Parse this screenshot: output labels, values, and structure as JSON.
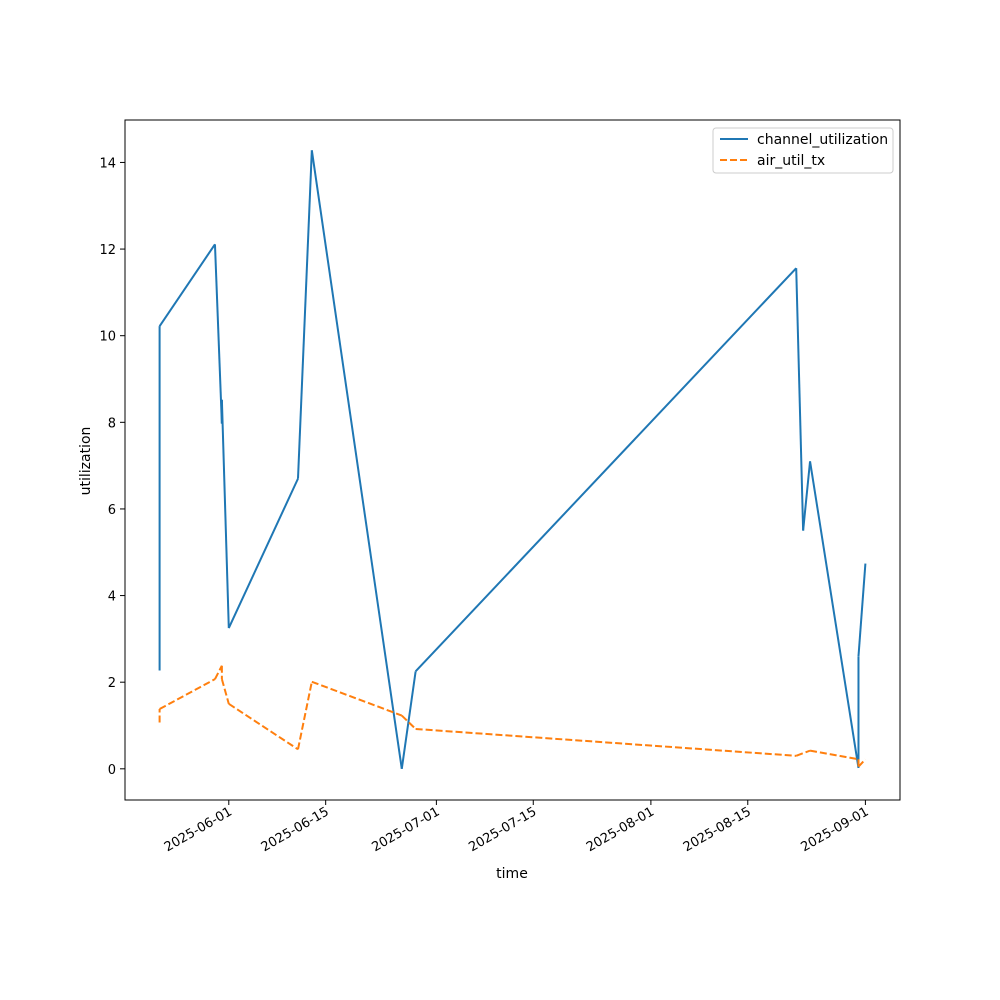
{
  "chart_data": {
    "type": "line",
    "xlabel": "time",
    "ylabel": "utilization",
    "x_ticks": [
      "2025-06-01",
      "2025-06-15",
      "2025-07-01",
      "2025-07-15",
      "2025-08-01",
      "2025-08-15",
      "2025-09-01"
    ],
    "y_ticks": [
      0,
      2,
      4,
      6,
      8,
      10,
      12,
      14
    ],
    "xlim": [
      "2025-05-17",
      "2025-09-06"
    ],
    "ylim": [
      -0.72,
      14.98
    ],
    "legend_position": "top-right",
    "grid": false,
    "series": [
      {
        "name": "channel_utilization",
        "color": "#1f77b4",
        "style": "solid",
        "points": [
          [
            "2025-05-22",
            2.27
          ],
          [
            "2025-05-22",
            10.22
          ],
          [
            "2025-05-30",
            12.11
          ],
          [
            "2025-05-31",
            7.97
          ],
          [
            "2025-05-31",
            8.52
          ],
          [
            "2025-06-01",
            3.25
          ],
          [
            "2025-06-11",
            6.7
          ],
          [
            "2025-06-13",
            14.28
          ],
          [
            "2025-06-26",
            0.0
          ],
          [
            "2025-06-28",
            2.25
          ],
          [
            "2025-08-22",
            11.56
          ],
          [
            "2025-08-23",
            5.5
          ],
          [
            "2025-08-24",
            7.1
          ],
          [
            "2025-08-31",
            0.02
          ],
          [
            "2025-08-31",
            2.6
          ],
          [
            "2025-09-01",
            4.74
          ]
        ]
      },
      {
        "name": "air_util_tx",
        "color": "#ff7f0e",
        "style": "dashed",
        "points": [
          [
            "2025-05-22",
            1.07
          ],
          [
            "2025-05-22",
            1.38
          ],
          [
            "2025-05-30",
            2.07
          ],
          [
            "2025-05-31",
            2.38
          ],
          [
            "2025-05-31",
            2.07
          ],
          [
            "2025-06-01",
            1.5
          ],
          [
            "2025-06-11",
            0.45
          ],
          [
            "2025-06-13",
            2.01
          ],
          [
            "2025-06-26",
            1.23
          ],
          [
            "2025-06-28",
            0.92
          ],
          [
            "2025-08-22",
            0.3
          ],
          [
            "2025-08-24",
            0.42
          ],
          [
            "2025-08-31",
            0.22
          ],
          [
            "2025-08-31",
            0.05
          ],
          [
            "2025-09-01",
            0.22
          ]
        ]
      }
    ]
  }
}
